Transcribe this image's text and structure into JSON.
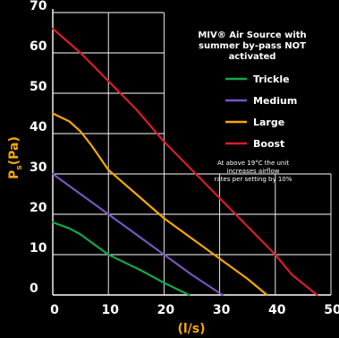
{
  "chart_data": {
    "type": "line",
    "title_lines": [
      "MIV® Air Source with",
      "summer by-pass NOT",
      "activated"
    ],
    "xlabel": "(l/s)",
    "ylabel": "P",
    "ylabel_sub": "s",
    "ylabel_unit": "(Pa)",
    "xlim": [
      0,
      50
    ],
    "ylim": [
      0,
      70
    ],
    "x_ticks": [
      "0",
      "10",
      "20",
      "30",
      "40",
      "50"
    ],
    "y_ticks": [
      "0",
      "10",
      "20",
      "30",
      "40",
      "50",
      "60",
      "70"
    ],
    "grid": true,
    "legend_position": "top-right",
    "note_lines": [
      "At above 19°C the unit",
      "increases airflow",
      "rates per setting by 10%"
    ],
    "series": [
      {
        "name": "Trickle",
        "color": "#12a84a",
        "x": [
          0,
          3,
          5,
          7,
          10,
          13,
          16,
          20,
          24.5
        ],
        "y": [
          18,
          16.5,
          15,
          13,
          10,
          8,
          6,
          3,
          0
        ]
      },
      {
        "name": "Medium",
        "color": "#7a55c0",
        "x": [
          0,
          5,
          10,
          15,
          20,
          25,
          30.5
        ],
        "y": [
          30,
          25,
          20,
          15,
          10,
          5,
          0
        ]
      },
      {
        "name": "Large",
        "color": "#f5a800",
        "x": [
          0,
          3,
          5,
          7,
          10,
          15,
          20,
          25,
          30,
          35,
          38.5
        ],
        "y": [
          45,
          43,
          40.5,
          37,
          31,
          25,
          19,
          14,
          9,
          4,
          0
        ]
      },
      {
        "name": "Boost",
        "color": "#d81e2a",
        "x": [
          0,
          5,
          10,
          15,
          20,
          25,
          30,
          35,
          40,
          43,
          47.5
        ],
        "y": [
          66,
          60,
          53,
          46,
          38,
          31,
          24,
          17,
          10,
          5,
          0
        ]
      }
    ]
  }
}
